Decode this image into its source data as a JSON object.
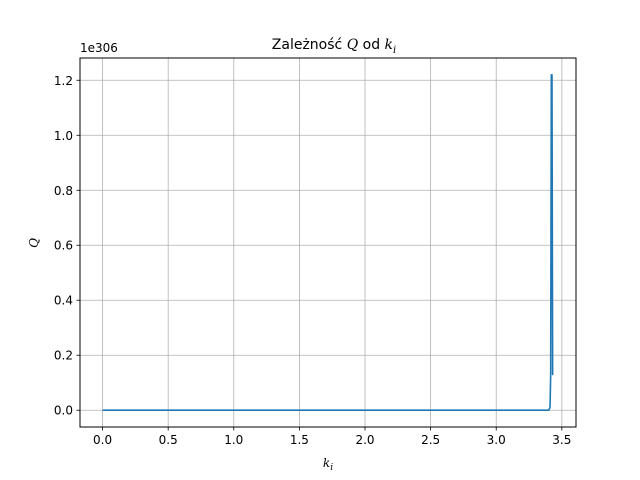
{
  "chart_data": {
    "type": "line",
    "title_prefix": "Zależność",
    "title_q": "Q",
    "title_mid": "od",
    "title_k": "k",
    "title_k_sub": "i",
    "xlabel_main": "k",
    "xlabel_sub": "i",
    "ylabel": "Q",
    "y_offset_text": "1e306",
    "xlim": [
      -0.172,
      3.608
    ],
    "ylim": [
      -0.061,
      1.281
    ],
    "x_ticks": [
      0.0,
      0.5,
      1.0,
      1.5,
      2.0,
      2.5,
      3.0,
      3.5
    ],
    "x_tick_labels": [
      "0.0",
      "0.5",
      "1.0",
      "1.5",
      "2.0",
      "2.5",
      "3.0",
      "3.5"
    ],
    "y_ticks": [
      0.0,
      0.2,
      0.4,
      0.6,
      0.8,
      1.0,
      1.2
    ],
    "y_tick_labels": [
      "0.0",
      "0.2",
      "0.4",
      "0.6",
      "0.8",
      "1.0",
      "1.2"
    ],
    "grid": true,
    "line_color": "#1f77b4",
    "series": [
      {
        "x": [
          0.0,
          0.5,
          1.0,
          1.5,
          2.0,
          2.5,
          3.0,
          3.3,
          3.4,
          3.41,
          3.415,
          3.42,
          3.425,
          3.43,
          3.435
        ],
        "y": [
          0.0,
          0.0,
          0.0,
          0.0,
          0.0,
          0.0,
          0.0,
          0.0,
          0.0,
          0.01,
          0.13,
          1.22,
          1.22,
          0.13,
          0.13
        ]
      }
    ]
  }
}
